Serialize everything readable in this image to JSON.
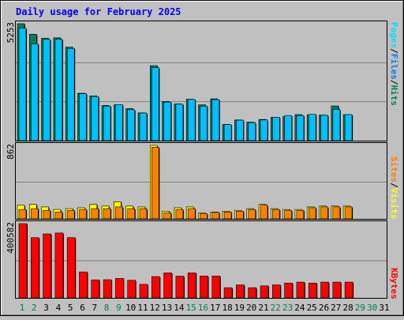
{
  "chart_data": {
    "type": "bar",
    "title": "Daily usage for February 2025",
    "categories": [
      "1",
      "2",
      "3",
      "4",
      "5",
      "6",
      "7",
      "8",
      "9",
      "10",
      "11",
      "12",
      "13",
      "14",
      "15",
      "16",
      "17",
      "18",
      "19",
      "20",
      "21",
      "22",
      "23",
      "24",
      "25",
      "26",
      "27",
      "28",
      "29",
      "30",
      "31"
    ],
    "weekend_days": [
      "1",
      "2",
      "8",
      "9",
      "15",
      "16",
      "22",
      "23",
      "29",
      "30"
    ],
    "panels": {
      "top": {
        "ymax_label": "5253",
        "ylim": [
          0,
          5253
        ],
        "right_label_parts": [
          "Pages",
          "/",
          "Files",
          "/",
          "Hits"
        ],
        "series": [
          {
            "name": "Hits",
            "values": [
              5253,
              4780,
              4600,
              4620,
              4200,
              2130,
              2010,
              1580,
              1610,
              1440,
              1250,
              3370,
              1760,
              1650,
              1860,
              1610,
              1880,
              730,
              930,
              830,
              950,
              1050,
              1080,
              1170,
              1160,
              1150,
              1560,
              1170,
              0,
              0,
              0
            ]
          },
          {
            "name": "Files",
            "values": [
              5050,
              4340,
              4550,
              4550,
              4140,
              2110,
              1980,
              1550,
              1620,
              1390,
              1240,
              3280,
              1730,
              1640,
              1850,
              1550,
              1840,
              720,
              920,
              810,
              930,
              1050,
              1130,
              1130,
              1180,
              1140,
              1400,
              1170,
              0,
              0,
              0
            ]
          },
          {
            "name": "Pages",
            "values": [
              0,
              0,
              0,
              0,
              0,
              0,
              0,
              0,
              0,
              0,
              0,
              0,
              0,
              0,
              0,
              0,
              0,
              0,
              0,
              0,
              0,
              0,
              0,
              0,
              0,
              0,
              0,
              0,
              0,
              0,
              0
            ]
          }
        ]
      },
      "middle": {
        "ymax_label": "862",
        "ylim": [
          0,
          862
        ],
        "right_label_parts": [
          "Sites",
          "/",
          "Visits"
        ],
        "series": [
          {
            "name": "Visits",
            "values": [
              160,
              170,
              140,
              110,
              120,
              130,
              170,
              150,
              200,
              150,
              140,
              862,
              90,
              130,
              140,
              70,
              80,
              90,
              100,
              120,
              170,
              120,
              110,
              110,
              140,
              150,
              150,
              150,
              0,
              0,
              0
            ]
          },
          {
            "name": "Sites",
            "values": [
              110,
              120,
              100,
              80,
              100,
              110,
              120,
              120,
              140,
              120,
              120,
              840,
              70,
              110,
              120,
              60,
              75,
              80,
              90,
              110,
              160,
              110,
              100,
              100,
              130,
              140,
              140,
              140,
              0,
              0,
              0
            ]
          }
        ]
      },
      "bottom": {
        "ymax_label": "400582",
        "ylim": [
          0,
          400582
        ],
        "right_label_parts": [
          "KBytes"
        ],
        "series": [
          {
            "name": "KBytes",
            "values": [
              400582,
              325000,
              345000,
              350000,
              325000,
              140000,
              97000,
              98000,
              105000,
              95000,
              73000,
              115000,
              135000,
              117000,
              135000,
              118000,
              118000,
              55000,
              70000,
              55000,
              65000,
              70000,
              80000,
              85000,
              80000,
              85000,
              85000,
              85000,
              0,
              0,
              0
            ]
          }
        ]
      }
    }
  },
  "colors": {
    "background": "#c0c0c0",
    "plot_background": "#c0c0c0",
    "title": "#0000ff",
    "hits": "#00805c",
    "files": "#00c0ff",
    "pages": "#00e0ff",
    "visits": "#ffff00",
    "sites": "#ff8000",
    "kbytes": "#ff0000",
    "weekday_label": "#000000",
    "weekend_label": "#00805c",
    "gridline": "#808080"
  }
}
